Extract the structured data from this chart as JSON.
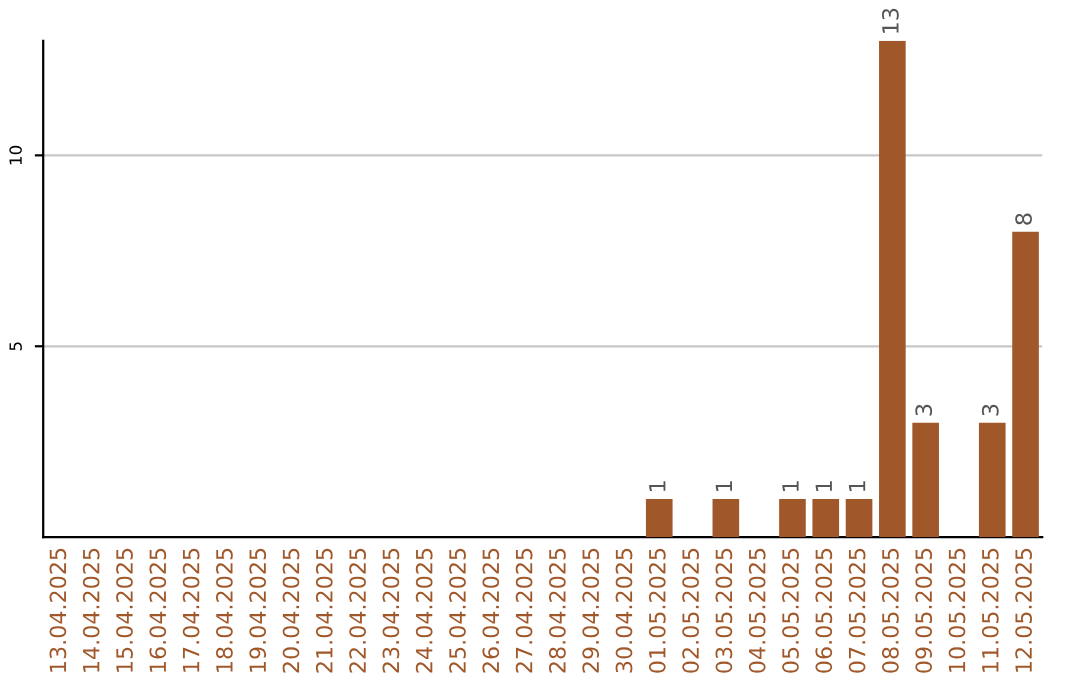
{
  "chart_data": {
    "type": "bar",
    "categories": [
      "13.04.2025",
      "14.04.2025",
      "15.04.2025",
      "16.04.2025",
      "17.04.2025",
      "18.04.2025",
      "19.04.2025",
      "20.04.2025",
      "21.04.2025",
      "22.04.2025",
      "23.04.2025",
      "24.04.2025",
      "25.04.2025",
      "26.04.2025",
      "27.04.2025",
      "28.04.2025",
      "29.04.2025",
      "30.04.2025",
      "01.05.2025",
      "02.05.2025",
      "03.05.2025",
      "04.05.2025",
      "05.05.2025",
      "06.05.2025",
      "07.05.2025",
      "08.05.2025",
      "09.05.2025",
      "10.05.2025",
      "11.05.2025",
      "12.05.2025"
    ],
    "values": [
      0,
      0,
      0,
      0,
      0,
      0,
      0,
      0,
      0,
      0,
      0,
      0,
      0,
      0,
      0,
      0,
      0,
      0,
      1,
      0,
      1,
      0,
      1,
      1,
      1,
      13,
      3,
      0,
      3,
      8
    ],
    "value_labels": [
      null,
      null,
      null,
      null,
      null,
      null,
      null,
      null,
      null,
      null,
      null,
      null,
      null,
      null,
      null,
      null,
      null,
      null,
      "1",
      null,
      "1",
      null,
      "1",
      "1",
      "1",
      "13",
      "3",
      null,
      "3",
      "8"
    ],
    "color": "#a0582a",
    "ylim": [
      0,
      13
    ],
    "yticks": [
      5,
      10
    ],
    "grid": "y"
  }
}
